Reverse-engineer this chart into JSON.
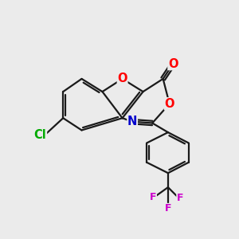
{
  "bg_color": "#ebebeb",
  "bond_color": "#1a1a1a",
  "bond_width": 1.6,
  "atom_colors": {
    "O": "#ff0000",
    "N": "#0000cc",
    "Cl": "#00aa00",
    "F": "#cc00cc",
    "C": "#1a1a1a"
  },
  "font_size_atom": 10.5,
  "font_size_small": 9.0,
  "figsize": [
    3.0,
    3.0
  ],
  "dpi": 100
}
